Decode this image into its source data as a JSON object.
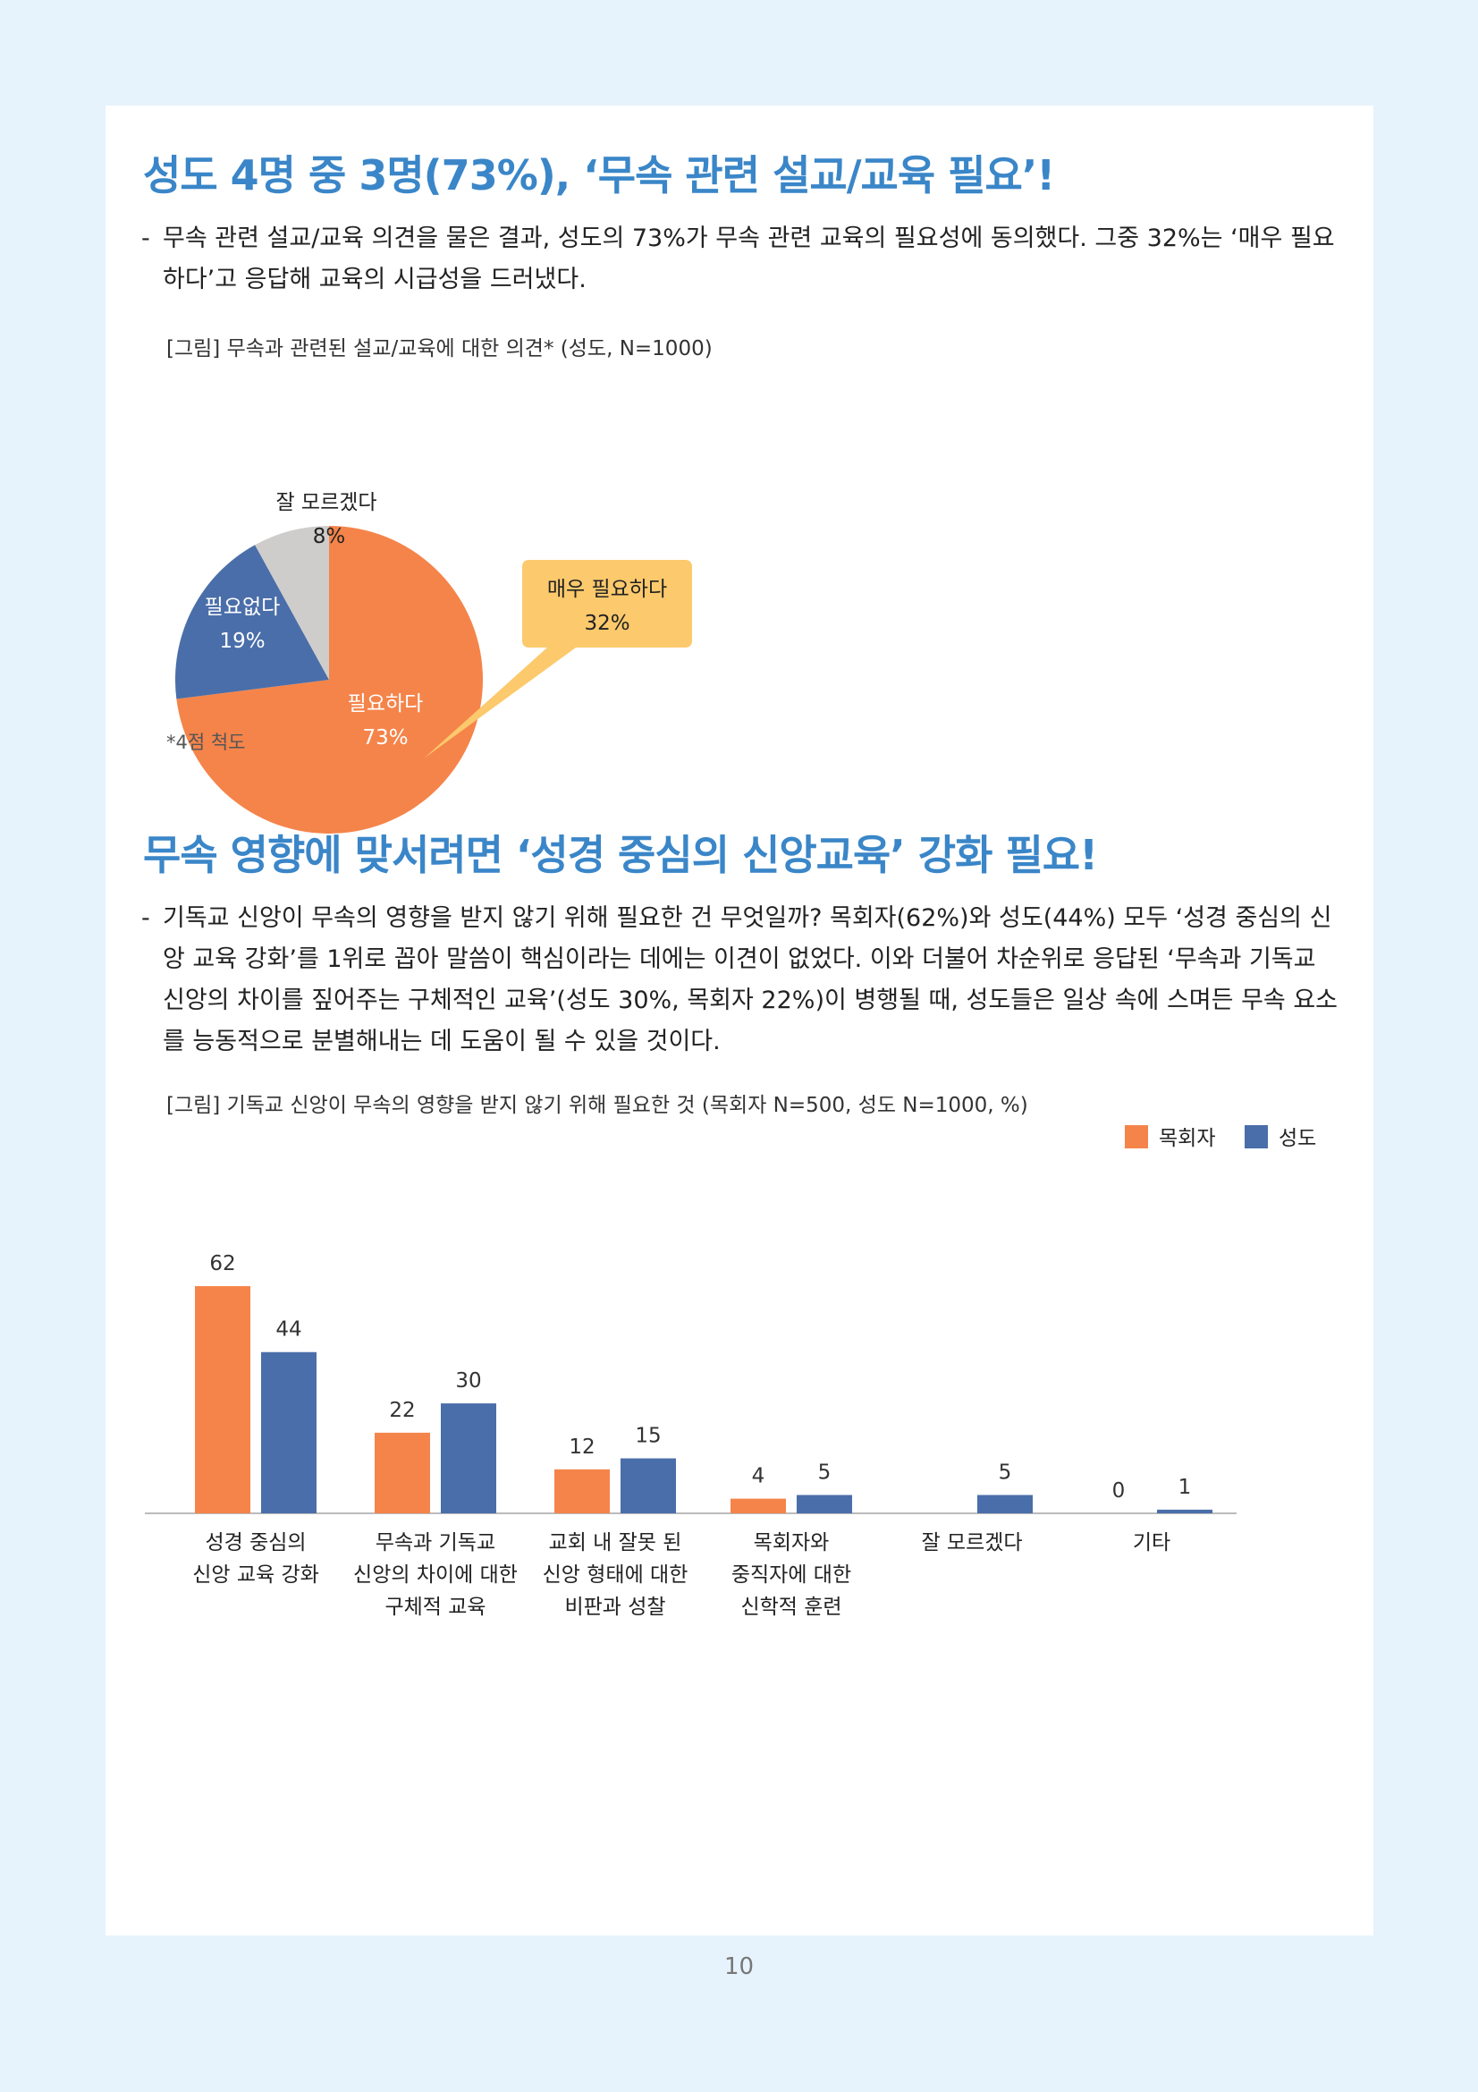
{
  "section1": {
    "heading": "성도 4명 중 3명(73%), ‘무속 관련 설교/교육 필요’!",
    "bullet_dash": "-",
    "paragraph": "무속 관련 설교/교육 의견을 물은 결과, 성도의 73%가 무속 관련 교육의 필요성에 동의했다. 그중 32%는 ‘매우 필요하다’고 응답해 교육의 시급성을 드러냈다.",
    "figure_caption": "[그림] 무속과 관련된 설교/교육에 대한 의견* (성도, N=1000)",
    "note": "*4점 척도"
  },
  "section2": {
    "heading": "무속 영향에 맞서려면 ‘성경 중심의 신앙교육’ 강화 필요!",
    "bullet_dash": "-",
    "paragraph": "기독교 신앙이 무속의 영향을 받지 않기 위해 필요한 건 무엇일까? 목회자(62%)와 성도(44%) 모두 ‘성경 중심의 신앙 교육 강화’를 1위로 꼽아 말씀이 핵심이라는 데에는 이견이 없었다. 이와 더불어 차순위로 응답된 ‘무속과 기독교 신앙의 차이를 짚어주는 구체적인 교육’(성도 30%, 목회자 22%)이 병행될 때, 성도들은 일상 속에 스며든 무속 요소를 능동적으로 분별해내는 데 도움이 될 수 있을 것이다.",
    "figure_caption": "[그림] 기독교 신앙이 무속의 영향을 받지 않기 위해 필요한 것 (목회자 N=500, 성도 N=1000, %)"
  },
  "page_number": "10",
  "chart_data": [
    {
      "type": "pie",
      "title": "",
      "slices": [
        {
          "label": "필요하다",
          "display": "73%",
          "value": 73,
          "color": "#f5844a"
        },
        {
          "label": "필요없다",
          "display": "19%",
          "value": 19,
          "color": "#4a6ea9"
        },
        {
          "label": "잘 모르겠다",
          "display": "8%",
          "value": 8,
          "color": "#cfcdcb"
        }
      ],
      "callout": {
        "label": "매우 필요하다",
        "display": "32%",
        "value": 32,
        "color": "#fcc96c"
      }
    },
    {
      "type": "bar",
      "title": "",
      "categories": [
        [
          "성경 중심의",
          "신앙 교육 강화"
        ],
        [
          "무속과 기독교",
          "신앙의 차이에 대한",
          "구체적 교육"
        ],
        [
          "교회 내 잘못 된",
          "신앙 형태에 대한",
          "비판과 성찰"
        ],
        [
          "목회자와",
          "중직자에 대한",
          "신학적 훈련"
        ],
        [
          "잘 모르겠다"
        ],
        [
          "기타"
        ]
      ],
      "series": [
        {
          "name": "목회자",
          "color": "#f5844a",
          "values": [
            62,
            22,
            12,
            4,
            null,
            0
          ]
        },
        {
          "name": "성도",
          "color": "#4a6ea9",
          "values": [
            44,
            30,
            15,
            5,
            5,
            1
          ]
        }
      ],
      "ylim": [
        0,
        62
      ],
      "legend_position": "top-right",
      "grid": false
    }
  ]
}
